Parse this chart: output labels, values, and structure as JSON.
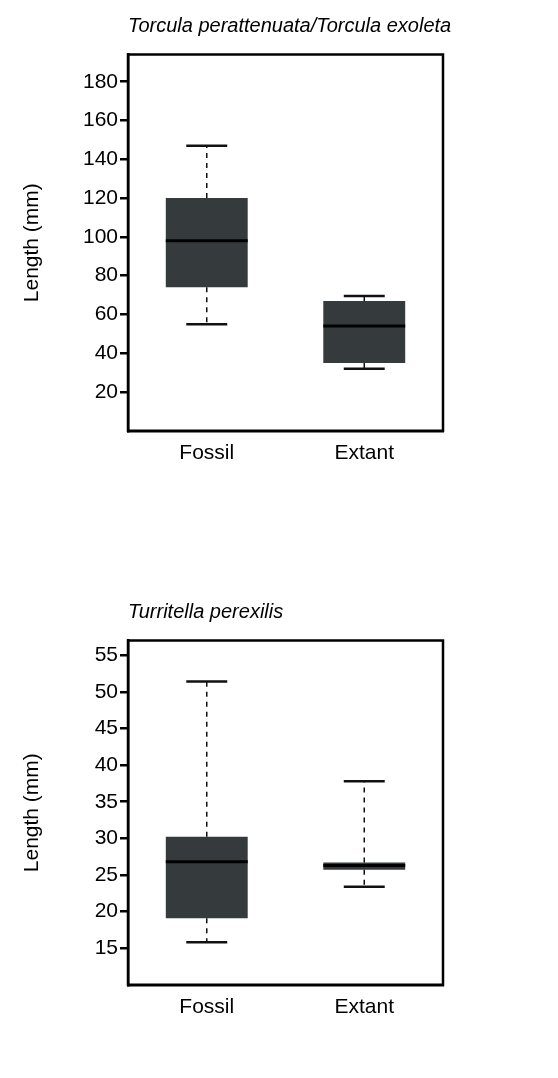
{
  "chart_data": [
    {
      "type": "box",
      "title": "Torcula perattenuata/Torcula exoleta",
      "ylabel": "Length (mm)",
      "categories": [
        "Fossil",
        "Extant"
      ],
      "color": "#353b3d",
      "boxes": [
        {
          "low": 55,
          "q1": 74,
          "median": 98,
          "q3": 120,
          "high": 147
        },
        {
          "low": 32,
          "q1": 35,
          "median": 54,
          "q3": 67,
          "high": 69.5
        }
      ],
      "ylim": [
        0,
        194
      ],
      "yticks": [
        20,
        40,
        60,
        80,
        100,
        120,
        140,
        160,
        180
      ]
    },
    {
      "type": "box",
      "title": "Turritella perexilis",
      "ylabel": "Length (mm)",
      "categories": [
        "Fossil",
        "Extant"
      ],
      "color": "#353b3d",
      "boxes": [
        {
          "low": 15.8,
          "q1": 19.1,
          "median": 26.8,
          "q3": 30.2,
          "high": 51.4
        },
        {
          "low": 23.4,
          "q1": 25.7,
          "median": 26.3,
          "q3": 26.7,
          "high": 37.8
        }
      ],
      "ylim": [
        10,
        57
      ],
      "yticks": [
        15,
        20,
        25,
        30,
        35,
        40,
        45,
        50,
        55
      ]
    }
  ]
}
